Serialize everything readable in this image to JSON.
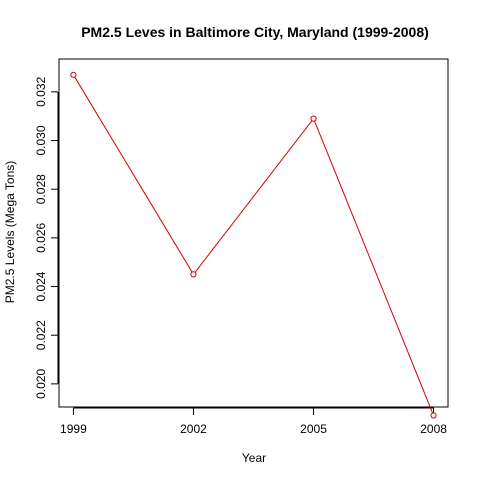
{
  "chart_data": {
    "type": "line",
    "title": "PM2.5 Leves in Baltimore City, Maryland (1999-2008)",
    "xlabel": "Year",
    "ylabel": "PM2.5 Levels (Mega Tons)",
    "x": [
      1999,
      2002,
      2005,
      2008
    ],
    "x_tick_labels": [
      "1999",
      "2002",
      "2005",
      "2008"
    ],
    "y_ticks": [
      0.02,
      0.022,
      0.024,
      0.026,
      0.028,
      0.03,
      0.032
    ],
    "y_tick_labels": [
      "0.020",
      "0.022",
      "0.024",
      "0.026",
      "0.028",
      "0.030",
      "0.032"
    ],
    "xlim": [
      1998.64,
      2008.36
    ],
    "ylim": [
      0.01905,
      0.03335
    ],
    "series": [
      {
        "values": [
          0.0327,
          0.0245,
          0.0309,
          0.0187
        ],
        "color": "#d40000",
        "marker": "open-circle"
      }
    ],
    "grid": false,
    "legend": "none"
  }
}
